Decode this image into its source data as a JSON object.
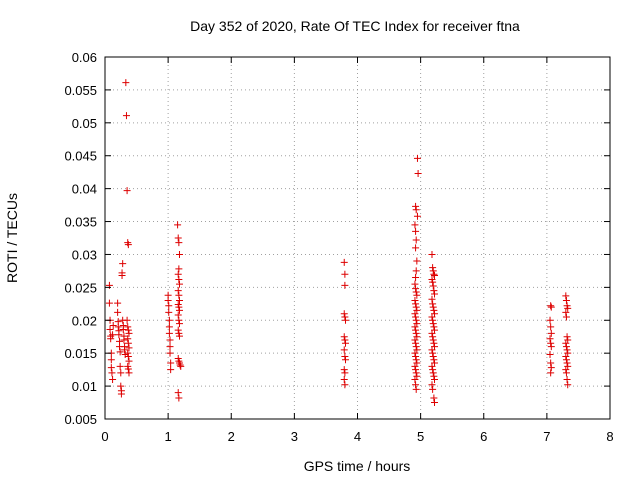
{
  "chart_data": {
    "type": "scatter",
    "title": "Day 352 of 2020, Rate Of TEC Index for receiver ftna",
    "xlabel": "GPS time / hours",
    "ylabel": "ROTI / TECUs",
    "xlim": [
      0,
      8
    ],
    "ylim": [
      0.005,
      0.06
    ],
    "x_ticks": [
      0,
      1,
      2,
      3,
      4,
      5,
      6,
      7,
      8
    ],
    "y_ticks": [
      0.005,
      0.01,
      0.015,
      0.02,
      0.025,
      0.03,
      0.035,
      0.04,
      0.045,
      0.05,
      0.055,
      0.06
    ],
    "x_tick_labels": [
      "0",
      "1",
      "2",
      "3",
      "4",
      "5",
      "6",
      "7",
      "8"
    ],
    "y_tick_labels": [
      "0.005",
      "0.01",
      "0.015",
      "0.02",
      "0.025",
      "0.03",
      "0.035",
      "0.04",
      "0.045",
      "0.05",
      "0.055",
      "0.06"
    ],
    "grid": true,
    "grid_style": "dotted",
    "marker": "+",
    "marker_color": "#dd0000",
    "points": [
      [
        0.07,
        0.0253
      ],
      [
        0.07,
        0.0226
      ],
      [
        0.08,
        0.02
      ],
      [
        0.08,
        0.0186
      ],
      [
        0.09,
        0.0176
      ],
      [
        0.09,
        0.0172
      ],
      [
        0.1,
        0.015
      ],
      [
        0.1,
        0.014
      ],
      [
        0.1,
        0.0128
      ],
      [
        0.11,
        0.012
      ],
      [
        0.12,
        0.011
      ],
      [
        0.12,
        0.0178
      ],
      [
        0.13,
        0.0192
      ],
      [
        0.2,
        0.0226
      ],
      [
        0.2,
        0.0212
      ],
      [
        0.21,
        0.0198
      ],
      [
        0.21,
        0.019
      ],
      [
        0.22,
        0.0184
      ],
      [
        0.22,
        0.0178
      ],
      [
        0.23,
        0.0168
      ],
      [
        0.23,
        0.016
      ],
      [
        0.24,
        0.0152
      ],
      [
        0.24,
        0.013
      ],
      [
        0.25,
        0.012
      ],
      [
        0.25,
        0.01
      ],
      [
        0.26,
        0.0093
      ],
      [
        0.26,
        0.0088
      ],
      [
        0.27,
        0.0268
      ],
      [
        0.27,
        0.0272
      ],
      [
        0.28,
        0.0286
      ],
      [
        0.28,
        0.02
      ],
      [
        0.29,
        0.0192
      ],
      [
        0.29,
        0.0186
      ],
      [
        0.3,
        0.0176
      ],
      [
        0.3,
        0.017
      ],
      [
        0.31,
        0.016
      ],
      [
        0.31,
        0.0155
      ],
      [
        0.32,
        0.0148
      ],
      [
        0.33,
        0.0561
      ],
      [
        0.34,
        0.0511
      ],
      [
        0.35,
        0.0397
      ],
      [
        0.36,
        0.0318
      ],
      [
        0.37,
        0.0315
      ],
      [
        0.35,
        0.02
      ],
      [
        0.36,
        0.019
      ],
      [
        0.37,
        0.0185
      ],
      [
        0.38,
        0.018
      ],
      [
        0.36,
        0.0172
      ],
      [
        0.37,
        0.0165
      ],
      [
        0.38,
        0.0158
      ],
      [
        0.36,
        0.015
      ],
      [
        0.37,
        0.0145
      ],
      [
        0.38,
        0.0138
      ],
      [
        0.36,
        0.013
      ],
      [
        0.37,
        0.0126
      ],
      [
        0.38,
        0.012
      ],
      [
        1.0,
        0.0238
      ],
      [
        1.0,
        0.023
      ],
      [
        1.01,
        0.0222
      ],
      [
        1.01,
        0.0212
      ],
      [
        1.02,
        0.02
      ],
      [
        1.02,
        0.019
      ],
      [
        1.02,
        0.018
      ],
      [
        1.03,
        0.017
      ],
      [
        1.03,
        0.016
      ],
      [
        1.03,
        0.015
      ],
      [
        1.04,
        0.0135
      ],
      [
        1.04,
        0.0125
      ],
      [
        1.15,
        0.0345
      ],
      [
        1.16,
        0.0325
      ],
      [
        1.17,
        0.0318
      ],
      [
        1.18,
        0.03
      ],
      [
        1.17,
        0.0278
      ],
      [
        1.16,
        0.027
      ],
      [
        1.17,
        0.0262
      ],
      [
        1.18,
        0.0255
      ],
      [
        1.16,
        0.0245
      ],
      [
        1.17,
        0.0238
      ],
      [
        1.18,
        0.023
      ],
      [
        1.16,
        0.0224
      ],
      [
        1.17,
        0.022
      ],
      [
        1.18,
        0.0215
      ],
      [
        1.16,
        0.0208
      ],
      [
        1.17,
        0.02
      ],
      [
        1.18,
        0.0195
      ],
      [
        1.16,
        0.0185
      ],
      [
        1.17,
        0.018
      ],
      [
        1.18,
        0.0176
      ],
      [
        1.16,
        0.0142
      ],
      [
        1.17,
        0.0138
      ],
      [
        1.18,
        0.0135
      ],
      [
        1.19,
        0.0132
      ],
      [
        1.2,
        0.013
      ],
      [
        1.16,
        0.009
      ],
      [
        1.17,
        0.0082
      ],
      [
        3.79,
        0.0288
      ],
      [
        3.8,
        0.027
      ],
      [
        3.8,
        0.0253
      ],
      [
        3.79,
        0.021
      ],
      [
        3.8,
        0.0205
      ],
      [
        3.81,
        0.02
      ],
      [
        3.79,
        0.0175
      ],
      [
        3.8,
        0.017
      ],
      [
        3.81,
        0.0165
      ],
      [
        3.79,
        0.0155
      ],
      [
        3.8,
        0.0145
      ],
      [
        3.81,
        0.014
      ],
      [
        3.79,
        0.0125
      ],
      [
        3.8,
        0.012
      ],
      [
        3.79,
        0.011
      ],
      [
        3.8,
        0.0102
      ],
      [
        4.92,
        0.0373
      ],
      [
        4.93,
        0.0368
      ],
      [
        4.91,
        0.0345
      ],
      [
        4.92,
        0.0335
      ],
      [
        4.93,
        0.0322
      ],
      [
        4.92,
        0.031
      ],
      [
        4.95,
        0.0446
      ],
      [
        4.96,
        0.0423
      ],
      [
        4.95,
        0.0358
      ],
      [
        4.94,
        0.029
      ],
      [
        4.93,
        0.0275
      ],
      [
        4.92,
        0.0265
      ],
      [
        4.91,
        0.0255
      ],
      [
        4.92,
        0.0248
      ],
      [
        4.93,
        0.0243
      ],
      [
        4.94,
        0.0238
      ],
      [
        4.91,
        0.023
      ],
      [
        4.92,
        0.0225
      ],
      [
        4.93,
        0.022
      ],
      [
        4.94,
        0.0215
      ],
      [
        4.91,
        0.021
      ],
      [
        4.92,
        0.0205
      ],
      [
        4.93,
        0.02
      ],
      [
        4.94,
        0.0195
      ],
      [
        4.91,
        0.019
      ],
      [
        4.92,
        0.0185
      ],
      [
        4.93,
        0.018
      ],
      [
        4.94,
        0.0175
      ],
      [
        4.91,
        0.017
      ],
      [
        4.92,
        0.0165
      ],
      [
        4.93,
        0.016
      ],
      [
        4.94,
        0.0155
      ],
      [
        4.91,
        0.015
      ],
      [
        4.92,
        0.0145
      ],
      [
        4.93,
        0.014
      ],
      [
        4.94,
        0.0135
      ],
      [
        4.91,
        0.013
      ],
      [
        4.92,
        0.0125
      ],
      [
        4.93,
        0.012
      ],
      [
        4.94,
        0.0115
      ],
      [
        4.91,
        0.011
      ],
      [
        4.92,
        0.0102
      ],
      [
        4.93,
        0.0095
      ],
      [
        5.18,
        0.03
      ],
      [
        5.19,
        0.028
      ],
      [
        5.2,
        0.0275
      ],
      [
        5.21,
        0.027
      ],
      [
        5.22,
        0.0268
      ],
      [
        5.18,
        0.0262
      ],
      [
        5.19,
        0.0258
      ],
      [
        5.2,
        0.0252
      ],
      [
        5.21,
        0.0245
      ],
      [
        5.22,
        0.024
      ],
      [
        5.18,
        0.0232
      ],
      [
        5.19,
        0.0225
      ],
      [
        5.2,
        0.022
      ],
      [
        5.21,
        0.0215
      ],
      [
        5.22,
        0.021
      ],
      [
        5.18,
        0.0205
      ],
      [
        5.19,
        0.02
      ],
      [
        5.2,
        0.0195
      ],
      [
        5.21,
        0.019
      ],
      [
        5.22,
        0.0185
      ],
      [
        5.18,
        0.018
      ],
      [
        5.19,
        0.0175
      ],
      [
        5.2,
        0.017
      ],
      [
        5.21,
        0.0165
      ],
      [
        5.22,
        0.016
      ],
      [
        5.18,
        0.0155
      ],
      [
        5.19,
        0.015
      ],
      [
        5.2,
        0.0145
      ],
      [
        5.21,
        0.014
      ],
      [
        5.22,
        0.0135
      ],
      [
        5.18,
        0.013
      ],
      [
        5.19,
        0.0125
      ],
      [
        5.2,
        0.012
      ],
      [
        5.21,
        0.0115
      ],
      [
        5.22,
        0.011
      ],
      [
        5.18,
        0.0102
      ],
      [
        5.19,
        0.0095
      ],
      [
        5.21,
        0.0082
      ],
      [
        5.22,
        0.0075
      ],
      [
        7.06,
        0.0222
      ],
      [
        7.07,
        0.022
      ],
      [
        7.05,
        0.02
      ],
      [
        7.06,
        0.019
      ],
      [
        7.07,
        0.018
      ],
      [
        7.05,
        0.0172
      ],
      [
        7.06,
        0.0165
      ],
      [
        7.07,
        0.016
      ],
      [
        7.05,
        0.0148
      ],
      [
        7.06,
        0.0135
      ],
      [
        7.07,
        0.0128
      ],
      [
        7.06,
        0.012
      ],
      [
        7.3,
        0.0237
      ],
      [
        7.31,
        0.023
      ],
      [
        7.32,
        0.0222
      ],
      [
        7.33,
        0.0218
      ],
      [
        7.3,
        0.0212
      ],
      [
        7.31,
        0.0205
      ],
      [
        7.32,
        0.0175
      ],
      [
        7.33,
        0.017
      ],
      [
        7.3,
        0.0165
      ],
      [
        7.31,
        0.016
      ],
      [
        7.32,
        0.0155
      ],
      [
        7.33,
        0.015
      ],
      [
        7.3,
        0.0145
      ],
      [
        7.31,
        0.014
      ],
      [
        7.32,
        0.0135
      ],
      [
        7.33,
        0.013
      ],
      [
        7.3,
        0.0125
      ],
      [
        7.31,
        0.012
      ],
      [
        7.32,
        0.011
      ],
      [
        7.33,
        0.0102
      ]
    ]
  }
}
